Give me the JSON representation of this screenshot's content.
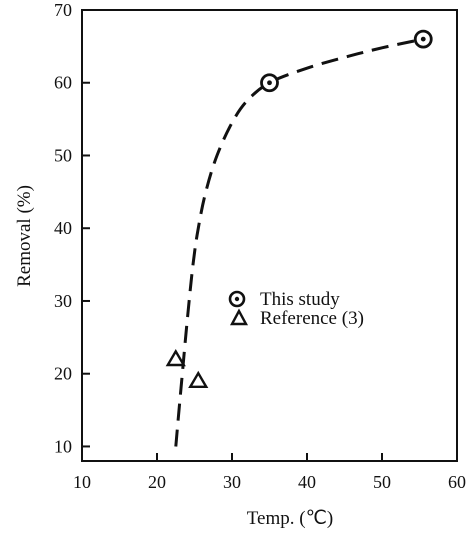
{
  "chart_data": {
    "type": "scatter",
    "xlabel": "Temp. (℃)",
    "ylabel": "Removal (%)",
    "xlim": [
      10,
      60
    ],
    "ylim": [
      8,
      70
    ],
    "xticks": [
      "10",
      "20",
      "30",
      "40",
      "50",
      "60"
    ],
    "yticks": [
      "10",
      "20",
      "30",
      "40",
      "50",
      "60",
      "70"
    ],
    "grid": false,
    "legend_position": "middle-right",
    "series": [
      {
        "name": "This study",
        "marker": "circle-dot",
        "x": [
          35,
          55.5
        ],
        "y": [
          60,
          66
        ]
      },
      {
        "name": "Reference (3)",
        "marker": "triangle",
        "x": [
          22.5,
          25.5
        ],
        "y": [
          22,
          19
        ]
      }
    ],
    "trend_curve": {
      "style": "dashed",
      "x": [
        22.5,
        23.2,
        24.0,
        24.8,
        25.5,
        26.5,
        28.0,
        30.0,
        32.0,
        35.0,
        40.0,
        45.0,
        50.0,
        55.5
      ],
      "y": [
        10,
        18,
        27,
        35,
        40,
        45,
        50,
        54.5,
        57.5,
        60,
        62,
        63.5,
        64.8,
        66
      ]
    },
    "colors": {
      "ink": "#111111"
    }
  }
}
